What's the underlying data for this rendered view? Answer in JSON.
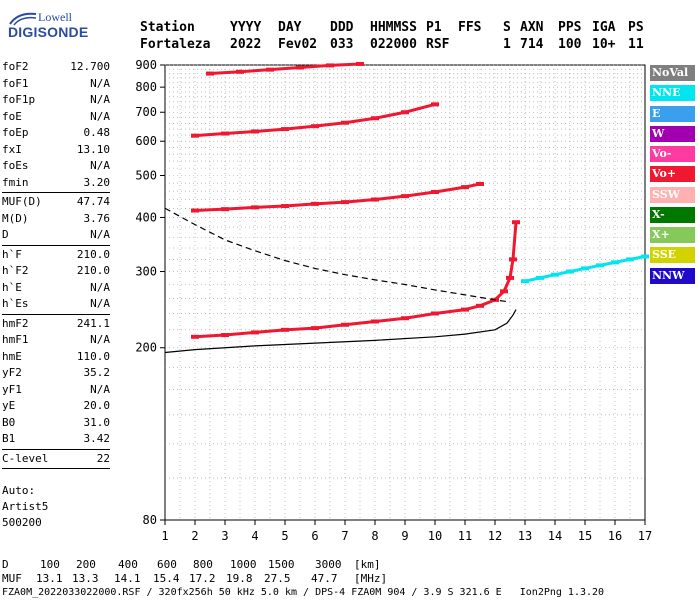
{
  "header": {
    "labels": [
      "Station",
      "YYYY",
      "DAY",
      "DDD",
      "HHMMSS",
      "P1",
      "FFS",
      "S",
      "AXN",
      "PPS",
      "IGA",
      "PS"
    ],
    "values": [
      "Fortaleza",
      "2022",
      "Fev02",
      "033",
      "022000",
      "RSF",
      "",
      "1",
      "714",
      "100",
      "10+",
      "11"
    ]
  },
  "logo": {
    "line1": "Lowell",
    "line2": "DIGISONDE",
    "color": "#2a4aa8"
  },
  "params": {
    "groups": [
      [
        {
          "name": "foF2",
          "value": "12.700"
        },
        {
          "name": "foF1",
          "value": "N/A"
        },
        {
          "name": "foF1p",
          "value": "N/A"
        },
        {
          "name": "foE",
          "value": "N/A"
        },
        {
          "name": "foEp",
          "value": "0.48"
        },
        {
          "name": "fxI",
          "value": "13.10"
        },
        {
          "name": "foEs",
          "value": "N/A"
        },
        {
          "name": "fmin",
          "value": "3.20"
        }
      ],
      [
        {
          "name": "MUF(D)",
          "value": "47.74"
        },
        {
          "name": "M(D)",
          "value": "3.76"
        },
        {
          "name": "D",
          "value": "N/A"
        }
      ],
      [
        {
          "name": "h`F",
          "value": "210.0"
        },
        {
          "name": "h`F2",
          "value": "210.0"
        },
        {
          "name": "h`E",
          "value": "N/A"
        },
        {
          "name": "h`Es",
          "value": "N/A"
        }
      ],
      [
        {
          "name": "hmF2",
          "value": "241.1"
        },
        {
          "name": "hmF1",
          "value": "N/A"
        },
        {
          "name": "hmE",
          "value": "110.0"
        },
        {
          "name": "yF2",
          "value": "35.2"
        },
        {
          "name": "yF1",
          "value": "N/A"
        },
        {
          "name": "yE",
          "value": "20.0"
        },
        {
          "name": "B0",
          "value": "31.0"
        },
        {
          "name": "B1",
          "value": "3.42"
        }
      ],
      [
        {
          "name": "C-level",
          "value": "22"
        }
      ]
    ]
  },
  "autoscaling": {
    "line1": "Auto:",
    "line2": "Artist5",
    "line3": "500200"
  },
  "legend": [
    {
      "label": "NoVal",
      "color": "#7f7f7f"
    },
    {
      "label": "NNE",
      "color": "#00e5f0"
    },
    {
      "label": "E",
      "color": "#3aa0ee"
    },
    {
      "label": "W",
      "color": "#a000b0"
    },
    {
      "label": "Vo-",
      "color": "#ff3aa0"
    },
    {
      "label": "Vo+",
      "color": "#f01830"
    },
    {
      "label": "SSW",
      "color": "#ffb0b0"
    },
    {
      "label": "X-",
      "color": "#007800"
    },
    {
      "label": "X+",
      "color": "#86c85a"
    },
    {
      "label": "SSE",
      "color": "#d2d200"
    },
    {
      "label": "NNW",
      "color": "#1e0ac8"
    }
  ],
  "footer": {
    "d_label": "D",
    "d_values": [
      "100",
      "200",
      "400",
      "600",
      "800",
      "1000",
      "1500",
      "3000"
    ],
    "d_unit": "[km]",
    "muf_label": "MUF",
    "muf_values": [
      "13.1",
      "13.3",
      "14.1",
      "15.4",
      "17.2",
      "19.8",
      "27.5",
      "47.7"
    ],
    "muf_unit": "[MHz]",
    "info": "FZA0M_2022033022000.RSF / 320fx256h 50 kHz 5.0 km / DPS-4 FZA0M 904 / 3.9 S 321.6 E   Ion2Png 1.3.20"
  },
  "chart_data": {
    "type": "scatter",
    "xlim": [
      1,
      17
    ],
    "ylim": [
      80,
      900
    ],
    "y_scale": "log",
    "x_ticks": [
      1,
      2,
      3,
      4,
      5,
      6,
      7,
      8,
      9,
      10,
      11,
      12,
      13,
      14,
      15,
      16,
      17
    ],
    "y_ticks": [
      80,
      200,
      300,
      400,
      500,
      600,
      700,
      800,
      900
    ],
    "traces": [
      {
        "name": "F2 O-trace",
        "color": "#f01830",
        "x": [
          2.0,
          3.0,
          4.0,
          5.0,
          6.0,
          7.0,
          8.0,
          9.0,
          10.0,
          11.0,
          11.5,
          12.0,
          12.3,
          12.5,
          12.6,
          12.7
        ],
        "y": [
          212,
          214,
          217,
          220,
          222,
          226,
          230,
          234,
          240,
          245,
          250,
          258,
          270,
          290,
          320,
          390
        ]
      },
      {
        "name": "2F O-trace",
        "color": "#f01830",
        "x": [
          2.0,
          3.0,
          4.0,
          5.0,
          6.0,
          7.0,
          8.0,
          9.0,
          10.0,
          11.0,
          11.5
        ],
        "y": [
          415,
          418,
          422,
          425,
          430,
          434,
          440,
          448,
          458,
          470,
          478
        ]
      },
      {
        "name": "3F O-trace",
        "color": "#f01830",
        "x": [
          2.0,
          3.0,
          4.0,
          5.0,
          6.0,
          7.0,
          8.0,
          9.0,
          10.0
        ],
        "y": [
          618,
          625,
          632,
          640,
          650,
          662,
          678,
          700,
          730
        ]
      },
      {
        "name": "4F O-trace",
        "color": "#f01830",
        "x": [
          2.5,
          3.5,
          4.5,
          5.5,
          6.5,
          7.5
        ],
        "y": [
          860,
          868,
          878,
          888,
          898,
          905
        ]
      },
      {
        "name": "X-trace",
        "color": "#00e5f0",
        "x": [
          13.0,
          13.5,
          14.0,
          14.5,
          15.0,
          15.5,
          16.0,
          16.5,
          17.0
        ],
        "y": [
          285,
          290,
          295,
          300,
          305,
          310,
          315,
          320,
          325
        ]
      },
      {
        "name": "Profile",
        "color": "#000000",
        "x": [
          1.0,
          2.0,
          4.0,
          6.0,
          8.0,
          10.0,
          11.0,
          12.0,
          12.4,
          12.6,
          12.7
        ],
        "y": [
          195,
          198,
          202,
          205,
          208,
          212,
          215,
          220,
          228,
          238,
          245
        ]
      },
      {
        "name": "MUF dashed",
        "color": "#000000",
        "dashed": true,
        "x": [
          1.0,
          2.0,
          3.0,
          4.0,
          5.0,
          6.0,
          7.0,
          8.0,
          9.0,
          10.0,
          11.0,
          12.0,
          12.5
        ],
        "y": [
          420,
          385,
          355,
          335,
          318,
          305,
          295,
          287,
          280,
          272,
          265,
          258,
          255
        ]
      }
    ]
  }
}
